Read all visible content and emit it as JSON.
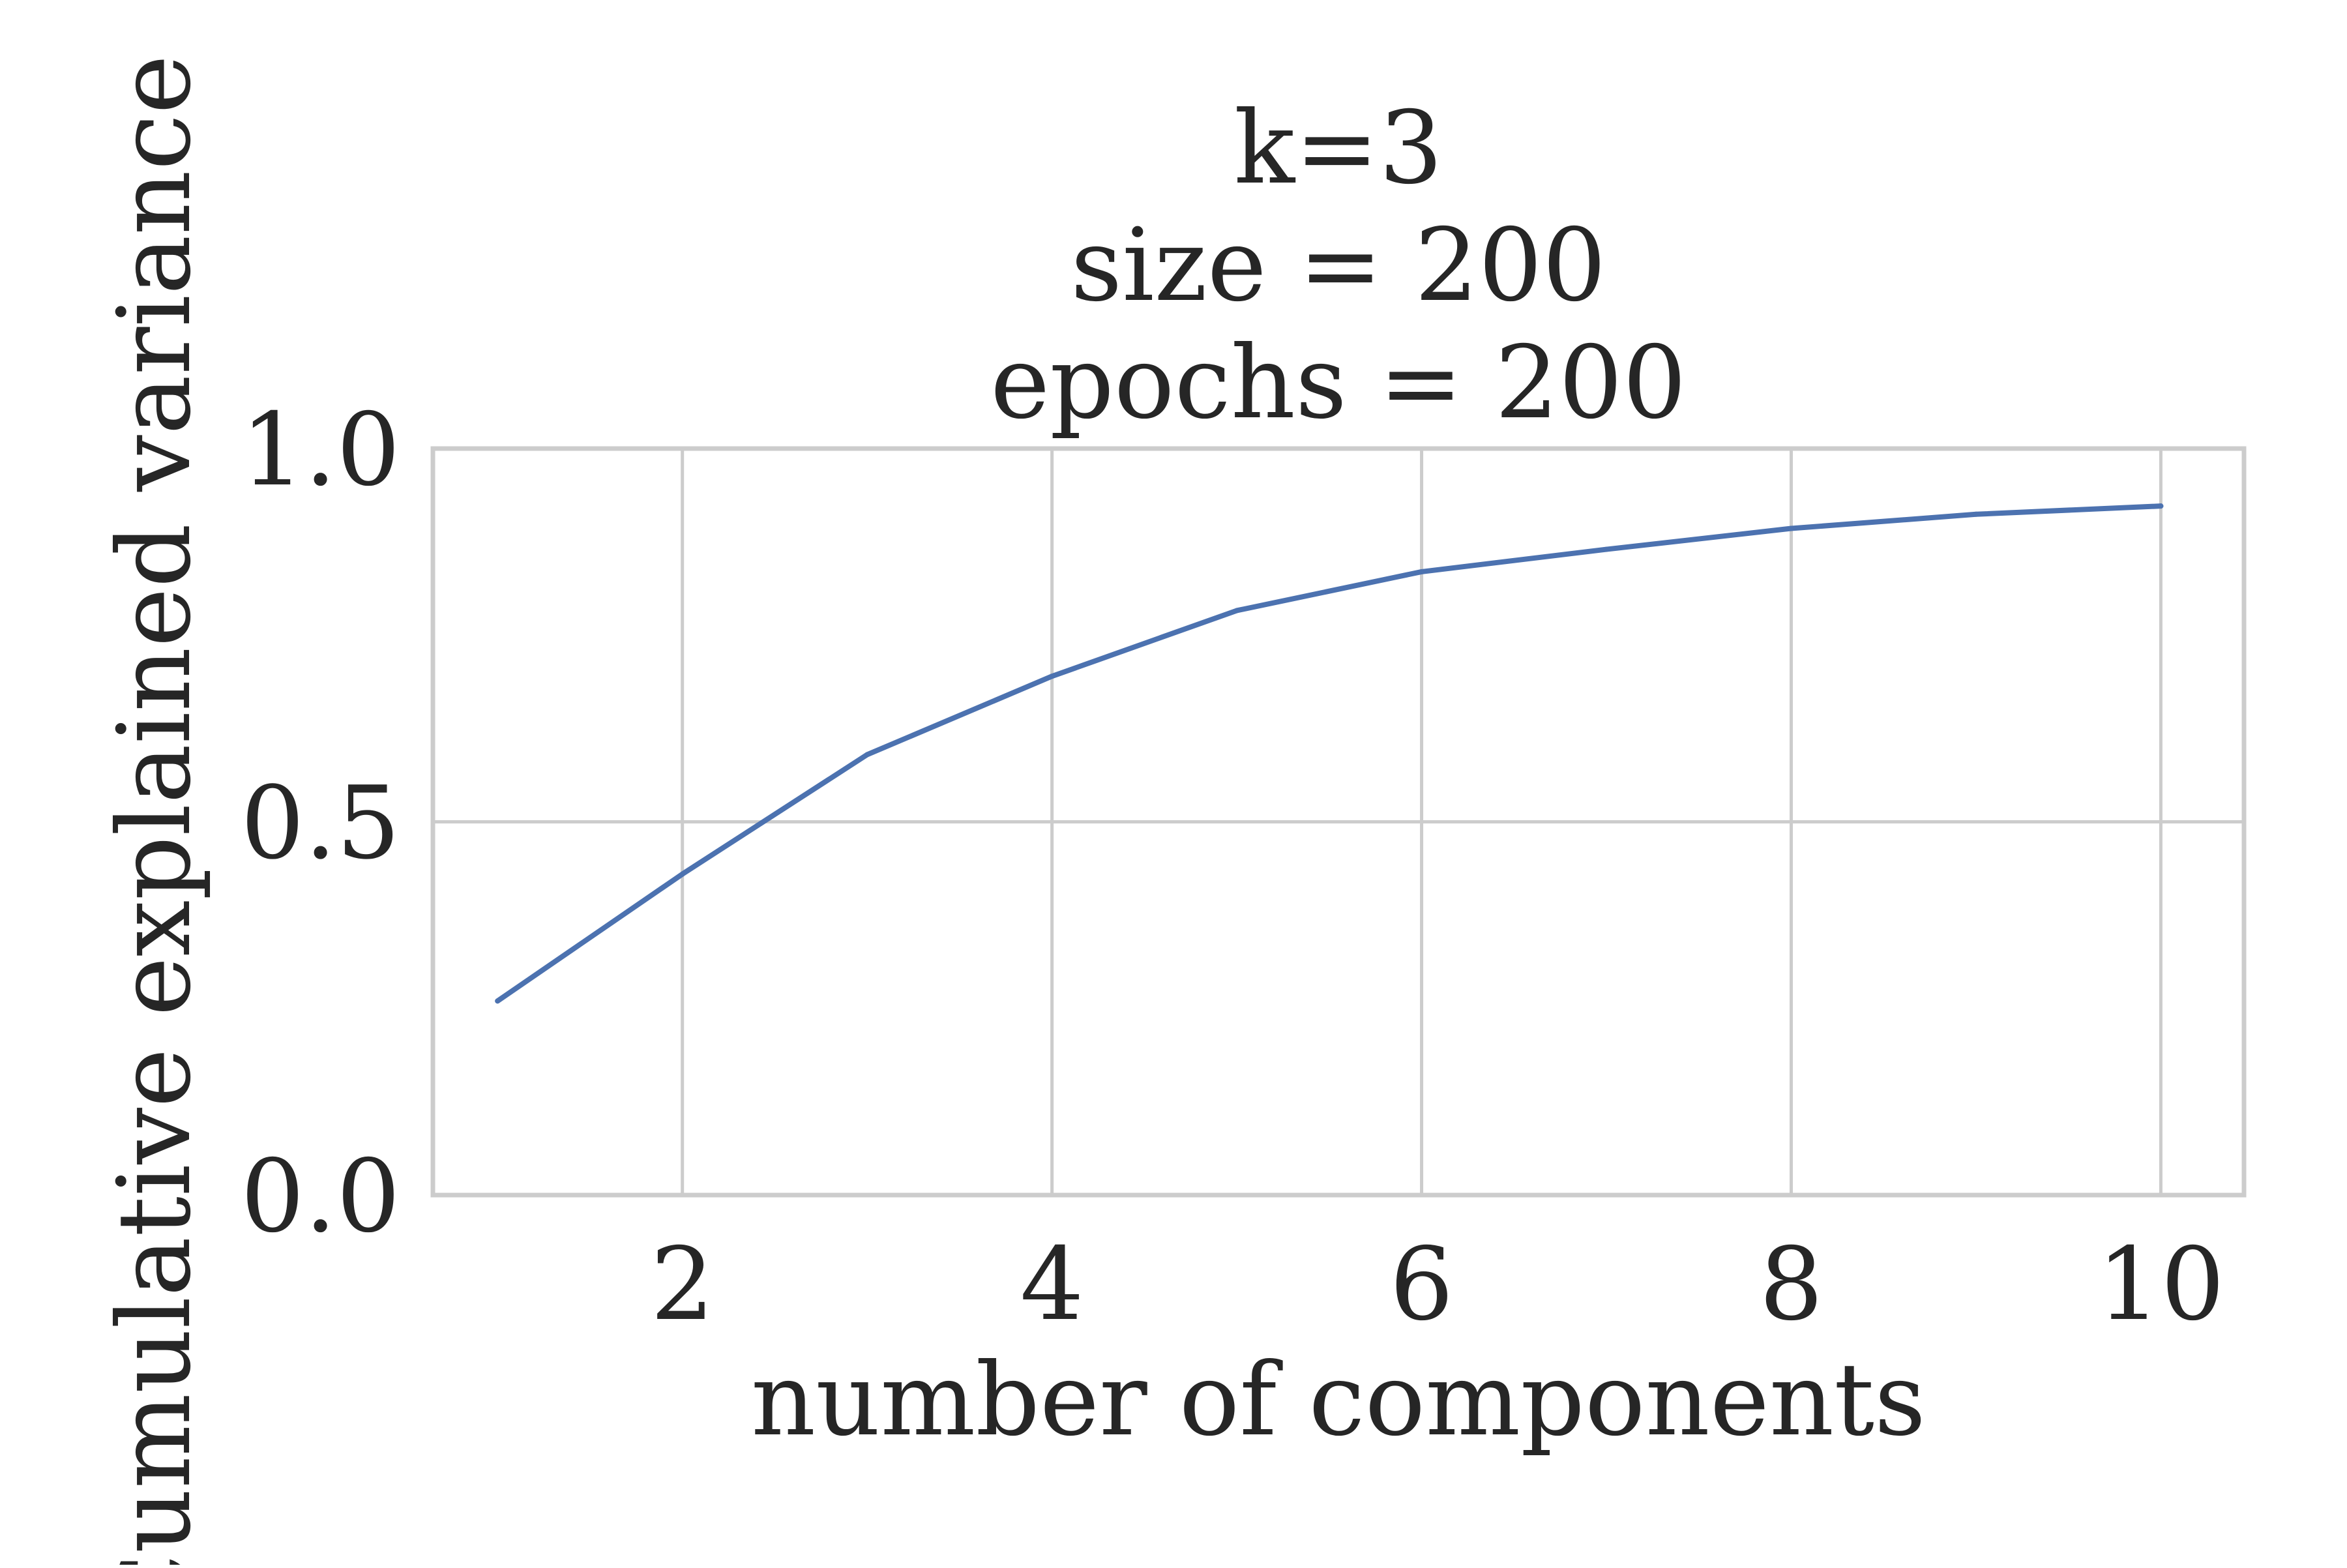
{
  "chart_data": {
    "type": "line",
    "title_lines": [
      "k=3",
      "size = 200",
      "epochs = 200"
    ],
    "xlabel": "number of components",
    "ylabel": "Cumulative explained variance",
    "xlim": [
      0.65,
      10.45
    ],
    "ylim": [
      0.0,
      1.0
    ],
    "xticks": [
      2,
      4,
      6,
      8,
      10
    ],
    "xtick_labels": [
      "2",
      "4",
      "6",
      "8",
      "10"
    ],
    "yticks": [
      0.0,
      0.5,
      1.0
    ],
    "ytick_labels": [
      "0.0",
      "0.5",
      "1.0"
    ],
    "grid": true,
    "series": [
      {
        "color": "#4c72b0",
        "x": [
          1,
          2,
          3,
          4,
          5,
          6,
          7,
          8,
          9,
          10
        ],
        "y": [
          0.26,
          0.43,
          0.59,
          0.695,
          0.783,
          0.835,
          0.865,
          0.893,
          0.912,
          0.923
        ]
      }
    ]
  }
}
